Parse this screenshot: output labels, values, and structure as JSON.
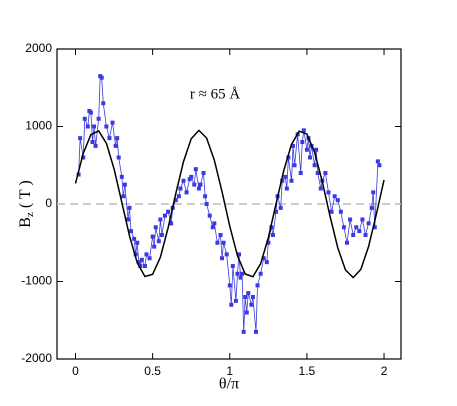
{
  "chart_data": {
    "type": "line",
    "annotation": "r ≈ 65 Å",
    "xlabel": "θ/π",
    "ylabel": {
      "main": "B",
      "sub": "z",
      "unit": "( T )"
    },
    "xlim": [
      -0.12,
      2.11
    ],
    "ylim": [
      -2000,
      2000
    ],
    "xticks": [
      0,
      0.5,
      1,
      1.5,
      2
    ],
    "yticks": [
      -2000,
      -1000,
      0,
      1000,
      2000
    ],
    "reference_line": 0,
    "series": [
      {
        "color": "#3a3ae0",
        "markers": true,
        "x": [
          0.02,
          0.03,
          0.05,
          0.06,
          0.08,
          0.09,
          0.1,
          0.11,
          0.12,
          0.13,
          0.15,
          0.16,
          0.17,
          0.18,
          0.2,
          0.22,
          0.24,
          0.26,
          0.27,
          0.28,
          0.3,
          0.31,
          0.32,
          0.34,
          0.35,
          0.36,
          0.38,
          0.39,
          0.4,
          0.41,
          0.42,
          0.43,
          0.45,
          0.46,
          0.48,
          0.5,
          0.51,
          0.52,
          0.54,
          0.55,
          0.56,
          0.58,
          0.6,
          0.62,
          0.63,
          0.65,
          0.67,
          0.68,
          0.7,
          0.72,
          0.74,
          0.75,
          0.77,
          0.78,
          0.8,
          0.81,
          0.83,
          0.84,
          0.85,
          0.87,
          0.89,
          0.9,
          0.92,
          0.94,
          0.95,
          0.96,
          0.98,
          1.0,
          1.01,
          1.02,
          1.04,
          1.05,
          1.06,
          1.07,
          1.08,
          1.09,
          1.1,
          1.11,
          1.12,
          1.14,
          1.15,
          1.17,
          1.18,
          1.2,
          1.22,
          1.24,
          1.25,
          1.27,
          1.28,
          1.3,
          1.31,
          1.33,
          1.34,
          1.36,
          1.37,
          1.38,
          1.4,
          1.41,
          1.42,
          1.44,
          1.46,
          1.47,
          1.48,
          1.5,
          1.51,
          1.52,
          1.53,
          1.55,
          1.56,
          1.57,
          1.59,
          1.6,
          1.62,
          1.64,
          1.66,
          1.68,
          1.7,
          1.72,
          1.74,
          1.76,
          1.78,
          1.8,
          1.82,
          1.84,
          1.86,
          1.88,
          1.9,
          1.92,
          1.93,
          1.94,
          1.96,
          1.97
        ],
        "values": [
          380,
          850,
          600,
          1100,
          1000,
          1200,
          1180,
          800,
          1000,
          750,
          1100,
          1650,
          1630,
          1300,
          1000,
          850,
          1050,
          750,
          850,
          600,
          350,
          100,
          250,
          -200,
          -50,
          -350,
          -450,
          -650,
          -500,
          -750,
          -800,
          -720,
          -800,
          -650,
          -700,
          -420,
          -550,
          -300,
          -480,
          -200,
          -400,
          -150,
          -100,
          -250,
          -50,
          50,
          100,
          200,
          300,
          150,
          320,
          350,
          250,
          450,
          200,
          250,
          400,
          100,
          0,
          -150,
          -300,
          -250,
          -500,
          -400,
          -700,
          -500,
          -650,
          -1050,
          -1300,
          -800,
          -1250,
          -900,
          -650,
          -950,
          -900,
          -1650,
          -1200,
          -1400,
          -1150,
          -1300,
          -1200,
          -1650,
          -1050,
          -900,
          -700,
          -750,
          -500,
          -300,
          -400,
          -100,
          100,
          -50,
          300,
          350,
          200,
          600,
          300,
          750,
          500,
          900,
          400,
          800,
          950,
          700,
          850,
          600,
          750,
          500,
          700,
          400,
          200,
          300,
          400,
          150,
          -100,
          100,
          50,
          -100,
          -300,
          -500,
          -200,
          -400,
          -300,
          -350,
          -200,
          -400,
          -250,
          -50,
          150,
          -300,
          550,
          500
        ]
      },
      {
        "color": "#000000",
        "markers": false,
        "x": [
          0,
          0.05,
          0.1,
          0.15,
          0.2,
          0.25,
          0.3,
          0.35,
          0.4,
          0.45,
          0.5,
          0.55,
          0.6,
          0.65,
          0.7,
          0.75,
          0.8,
          0.85,
          0.9,
          0.95,
          1.0,
          1.05,
          1.1,
          1.15,
          1.2,
          1.25,
          1.3,
          1.35,
          1.4,
          1.45,
          1.5,
          1.55,
          1.6,
          1.65,
          1.7,
          1.75,
          1.8,
          1.85,
          1.9,
          1.95,
          2.0
        ],
        "values": [
          266,
          652,
          895,
          942,
          783,
          452,
          22,
          -412,
          -756,
          -935,
          -909,
          -687,
          -307,
          134,
          547,
          841,
          950,
          851,
          566,
          156,
          -288,
          -669,
          -903,
          -938,
          -771,
          -438,
          0,
          432,
          770,
          939,
          902,
          667,
          288,
          -156,
          -566,
          -851,
          -950,
          -841,
          -548,
          -135,
          308
        ]
      }
    ]
  }
}
